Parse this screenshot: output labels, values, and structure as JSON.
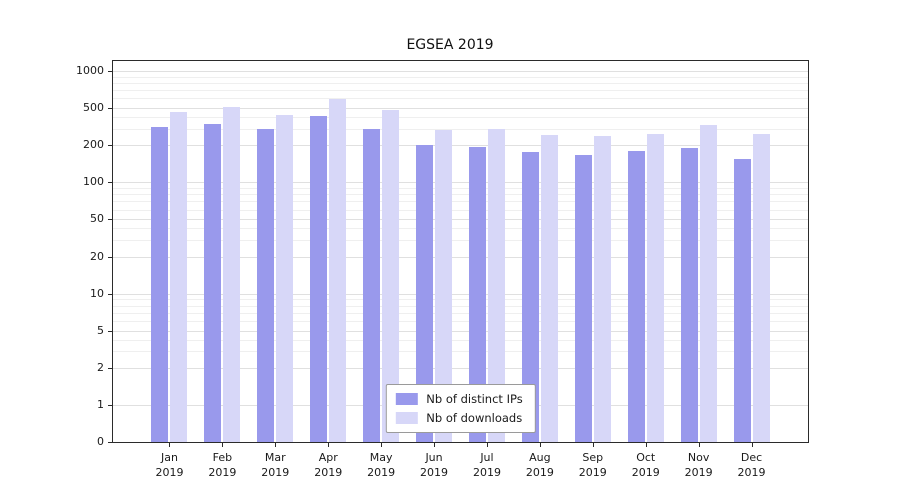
{
  "title": "EGSEA 2019",
  "colors": {
    "distinct_ips": "#9999ec",
    "downloads": "#d7d7f8",
    "grid_major": "#e0e0e0",
    "grid_minor": "#efefef",
    "axis": "#2b2b2b",
    "background": "#ffffff"
  },
  "chart_data": {
    "type": "bar",
    "title": "EGSEA 2019",
    "categories": [
      "Jan",
      "Feb",
      "Mar",
      "Apr",
      "May",
      "Jun",
      "Jul",
      "Aug",
      "Sep",
      "Oct",
      "Nov",
      "Dec"
    ],
    "category_year": "2019",
    "series": [
      {
        "name": "Nb of distinct IPs",
        "color": "#9999ec",
        "values": [
          310,
          335,
          295,
          410,
          295,
          200,
          195,
          175,
          165,
          180,
          190,
          155
        ]
      },
      {
        "name": "Nb of downloads",
        "color": "#d7d7f8",
        "values": [
          455,
          510,
          420,
          590,
          480,
          290,
          300,
          260,
          250,
          265,
          330,
          265
        ]
      }
    ],
    "yticks": [
      0,
      1,
      2,
      5,
      10,
      20,
      50,
      100,
      200,
      500,
      1000
    ],
    "ylim": [
      0,
      1200
    ],
    "xlabel": "",
    "ylabel": "",
    "grid": true,
    "legend_position": "lower center",
    "scale": "log-even-ticks"
  }
}
